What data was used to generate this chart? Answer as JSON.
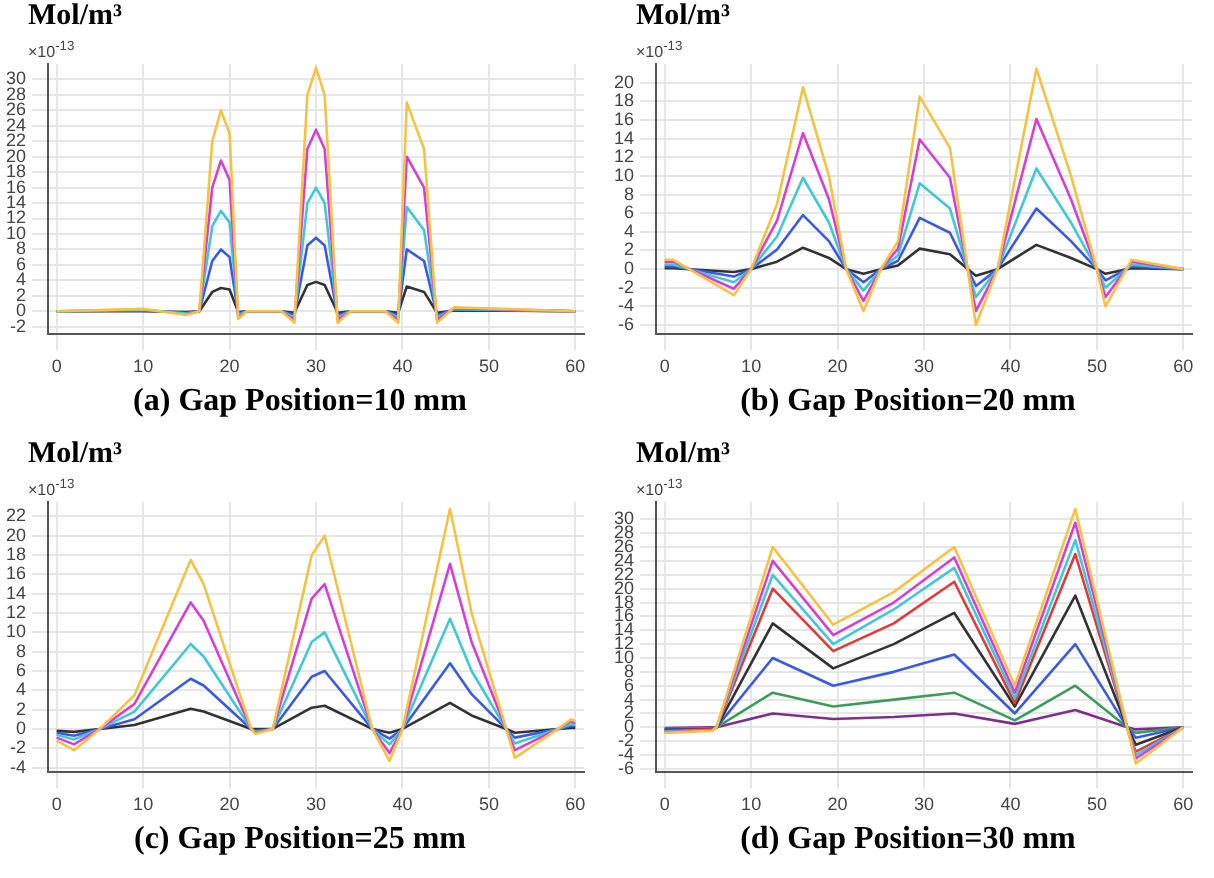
{
  "chart_data": [
    {
      "type": "line",
      "title": "(a) Gap Position=10 mm",
      "ylabel": "Mol/m³",
      "annotations": [
        "×10$^{-13}$"
      ],
      "marker": "none",
      "grid": true,
      "legend": false,
      "x": [
        0,
        10,
        15,
        16.5,
        18,
        19,
        20,
        21,
        22,
        26,
        27.5,
        29,
        30,
        31,
        32.5,
        34,
        38,
        39.5,
        40.5,
        42.5,
        44,
        46,
        60
      ],
      "xlim": [
        -1,
        61
      ],
      "xticks": [
        0,
        10,
        20,
        30,
        40,
        50,
        60
      ],
      "ylim": [
        -3,
        32
      ],
      "yticks": [
        -2,
        0,
        2,
        4,
        6,
        8,
        10,
        12,
        14,
        16,
        18,
        20,
        22,
        24,
        26,
        28,
        30
      ],
      "series": [
        {
          "color": "#f5c242",
          "values": [
            0,
            0.3,
            -0.5,
            0,
            22,
            26,
            23,
            -1,
            0,
            0,
            -1.5,
            28,
            31.5,
            28,
            -1.5,
            0,
            0,
            -1.5,
            27,
            21,
            -1.5,
            0.5,
            0
          ]
        },
        {
          "color": "#d63fd6",
          "values": [
            null,
            null,
            -0.4,
            0,
            16,
            19.5,
            17,
            -0.8,
            0,
            0,
            -1.1,
            21,
            23.5,
            21,
            -1.1,
            0,
            0,
            -1.1,
            20,
            16,
            -1.1,
            0.4,
            0
          ]
        },
        {
          "color": "#3fc8d6",
          "values": [
            0,
            0.2,
            -0.3,
            0,
            11,
            13,
            11.5,
            -0.5,
            0,
            0,
            -0.8,
            14,
            16,
            14,
            -0.8,
            0,
            0,
            -0.8,
            13.5,
            10.5,
            -0.8,
            0.3,
            0
          ]
        },
        {
          "color": "#3a5ae0",
          "values": [
            0,
            0.1,
            -0.2,
            0,
            6.5,
            8,
            7,
            -0.3,
            0,
            0,
            -0.5,
            8.5,
            9.5,
            8.5,
            -0.5,
            0,
            0,
            -0.5,
            8,
            6.5,
            -0.5,
            0.2,
            0
          ]
        },
        {
          "color": "#333333",
          "values": [
            0,
            0,
            -0.1,
            0,
            2.5,
            3,
            2.8,
            -0.1,
            0,
            0,
            -0.2,
            3.4,
            3.8,
            3.4,
            -0.2,
            0,
            0,
            -0.2,
            3.2,
            2.5,
            -0.2,
            0.1,
            0
          ]
        }
      ]
    },
    {
      "type": "line",
      "title": "(b) Gap Position=20 mm",
      "ylabel": "Mol/m³",
      "annotations": [
        "×10$^{-13}$"
      ],
      "marker": "none",
      "grid": true,
      "legend": false,
      "x": [
        0,
        1,
        8,
        10,
        13,
        16,
        19,
        21,
        23,
        25,
        27,
        29.5,
        33,
        36,
        38.5,
        43,
        47,
        50,
        51,
        54,
        60
      ],
      "xlim": [
        -1,
        61
      ],
      "xticks": [
        0,
        10,
        20,
        30,
        40,
        50,
        60
      ],
      "ylim": [
        -7,
        22
      ],
      "yticks": [
        -6,
        -4,
        -2,
        0,
        2,
        4,
        6,
        8,
        10,
        12,
        14,
        16,
        18,
        20
      ],
      "series": [
        {
          "color": "#f5c242",
          "values": [
            1,
            1,
            -2.8,
            0,
            7,
            19.5,
            10,
            0,
            -4.5,
            0,
            3,
            18.5,
            13,
            -6,
            0,
            21.5,
            10,
            0,
            -4,
            1,
            0
          ]
        },
        {
          "color": "#d63fd6",
          "values": [
            0.8,
            0.8,
            -2.1,
            0,
            5.2,
            14.6,
            7.5,
            0,
            -3.4,
            0,
            2.2,
            13.9,
            9.8,
            -4.5,
            0,
            16.1,
            7.5,
            0,
            -3,
            0.8,
            0
          ]
        },
        {
          "color": "#3fc8d6",
          "values": [
            0.5,
            0.5,
            -1.4,
            0,
            3.5,
            9.8,
            5,
            0,
            -2.3,
            0,
            1.5,
            9.2,
            6.5,
            -3,
            0,
            10.8,
            5,
            0,
            -2,
            0.5,
            0
          ]
        },
        {
          "color": "#3a5ae0",
          "values": [
            0.3,
            0.3,
            -0.8,
            0,
            2.1,
            5.8,
            3,
            0,
            -1.4,
            0,
            0.9,
            5.5,
            3.9,
            -1.8,
            0,
            6.5,
            3,
            0,
            -1.2,
            0.3,
            0
          ]
        },
        {
          "color": "#333333",
          "values": [
            0.1,
            0.1,
            -0.3,
            0,
            0.8,
            2.3,
            1.2,
            0,
            -0.5,
            0,
            0.4,
            2.2,
            1.6,
            -0.7,
            0,
            2.6,
            1.2,
            0,
            -0.5,
            0.1,
            0
          ]
        }
      ]
    },
    {
      "type": "line",
      "title": "(c) Gap Position=25 mm",
      "ylabel": "Mol/m³",
      "annotations": [
        "×10$^{-13}$"
      ],
      "marker": "none",
      "grid": true,
      "legend": false,
      "x": [
        0,
        2,
        5,
        9,
        15.5,
        17,
        22.5,
        23,
        25,
        29.5,
        31,
        36.5,
        38.5,
        40,
        45.5,
        48,
        52,
        53,
        58,
        59.5,
        60
      ],
      "xlim": [
        -1,
        61
      ],
      "xticks": [
        0,
        10,
        20,
        30,
        40,
        50,
        60
      ],
      "ylim": [
        -4.5,
        23.5
      ],
      "yticks": [
        -4,
        -2,
        0,
        2,
        4,
        6,
        8,
        10,
        12,
        14,
        16,
        18,
        20,
        22
      ],
      "series": [
        {
          "color": "#f5c242",
          "values": [
            -1.2,
            -2.2,
            0,
            3.5,
            17.5,
            15,
            0,
            -0.5,
            0,
            18,
            20,
            0,
            -3.3,
            0,
            22.8,
            12,
            0,
            -3,
            0,
            1,
            0.8
          ]
        },
        {
          "color": "#d63fd6",
          "values": [
            -0.9,
            -1.6,
            0,
            2.6,
            13.1,
            11.2,
            0,
            -0.4,
            0,
            13.5,
            15,
            0,
            -2.5,
            0,
            17.1,
            9,
            0,
            -2.2,
            0,
            0.8,
            0.6
          ]
        },
        {
          "color": "#3fc8d6",
          "values": [
            -0.6,
            -1.1,
            0,
            1.8,
            8.8,
            7.5,
            0,
            -0.3,
            0,
            9,
            10,
            0,
            -1.6,
            0,
            11.4,
            6,
            0,
            -1.5,
            0,
            0.5,
            0.4
          ]
        },
        {
          "color": "#3a5ae0",
          "values": [
            -0.4,
            -0.7,
            0,
            1,
            5.2,
            4.5,
            0,
            -0.2,
            0,
            5.4,
            6,
            0,
            -1,
            0,
            6.8,
            3.6,
            0,
            -0.9,
            0,
            0.3,
            0.3
          ]
        },
        {
          "color": "#333333",
          "values": [
            -0.2,
            -0.3,
            0,
            0.4,
            2.1,
            1.8,
            0,
            0,
            0,
            2.2,
            2.4,
            0,
            -0.4,
            0,
            2.7,
            1.4,
            0,
            -0.4,
            0,
            0.1,
            0.1
          ]
        }
      ]
    },
    {
      "type": "line",
      "title": "(d) Gap Position=30 mm",
      "ylabel": "Mol/m³",
      "annotations": [
        "×10$^{-13}$"
      ],
      "marker": "none",
      "grid": true,
      "legend": false,
      "x": [
        0,
        5.5,
        6,
        12.5,
        19.5,
        26.5,
        33.5,
        40.5,
        47.5,
        53.5,
        54.5,
        60
      ],
      "xlim": [
        -1,
        61
      ],
      "xticks": [
        0,
        10,
        20,
        30,
        40,
        50,
        60
      ],
      "ylim": [
        -6.5,
        32.5
      ],
      "yticks": [
        -6,
        -4,
        -2,
        0,
        2,
        4,
        6,
        8,
        10,
        12,
        14,
        16,
        18,
        20,
        22,
        24,
        26,
        28,
        30
      ],
      "series": [
        {
          "color": "#f5c242",
          "values": [
            -0.8,
            -0.5,
            0,
            26,
            14.8,
            19.5,
            26,
            6,
            31.5,
            0,
            -5.2,
            0
          ]
        },
        {
          "color": "#d63fd6",
          "values": [
            -0.7,
            -0.4,
            0,
            24,
            13.3,
            18,
            24.5,
            5,
            29.5,
            0,
            -4.5,
            0
          ]
        },
        {
          "color": "#3fc8d6",
          "values": [
            -0.6,
            -0.4,
            0,
            22,
            12,
            17,
            23,
            4.2,
            27,
            0,
            -4,
            0
          ]
        },
        {
          "color": "#e03a3a",
          "values": [
            -0.5,
            -0.3,
            0,
            20,
            11,
            15,
            21,
            3.5,
            25,
            0,
            -3.5,
            0
          ]
        },
        {
          "color": "#333333",
          "values": [
            -0.4,
            -0.3,
            0,
            15,
            8.5,
            12,
            16.5,
            3,
            19,
            0,
            -2.5,
            0
          ]
        },
        {
          "color": "#3a5ae0",
          "values": [
            -0.3,
            -0.2,
            0,
            10,
            6,
            8,
            10.5,
            2,
            12,
            0,
            -1.5,
            0
          ]
        },
        {
          "color": "#3a9e5a",
          "values": [
            -0.2,
            -0.1,
            0,
            5,
            3,
            4,
            5,
            1,
            6,
            0,
            -0.8,
            0
          ]
        },
        {
          "color": "#7e2f8e",
          "values": [
            -0.1,
            0,
            0,
            2,
            1.2,
            1.5,
            2,
            0.5,
            2.5,
            0,
            -0.3,
            0
          ]
        }
      ]
    }
  ]
}
